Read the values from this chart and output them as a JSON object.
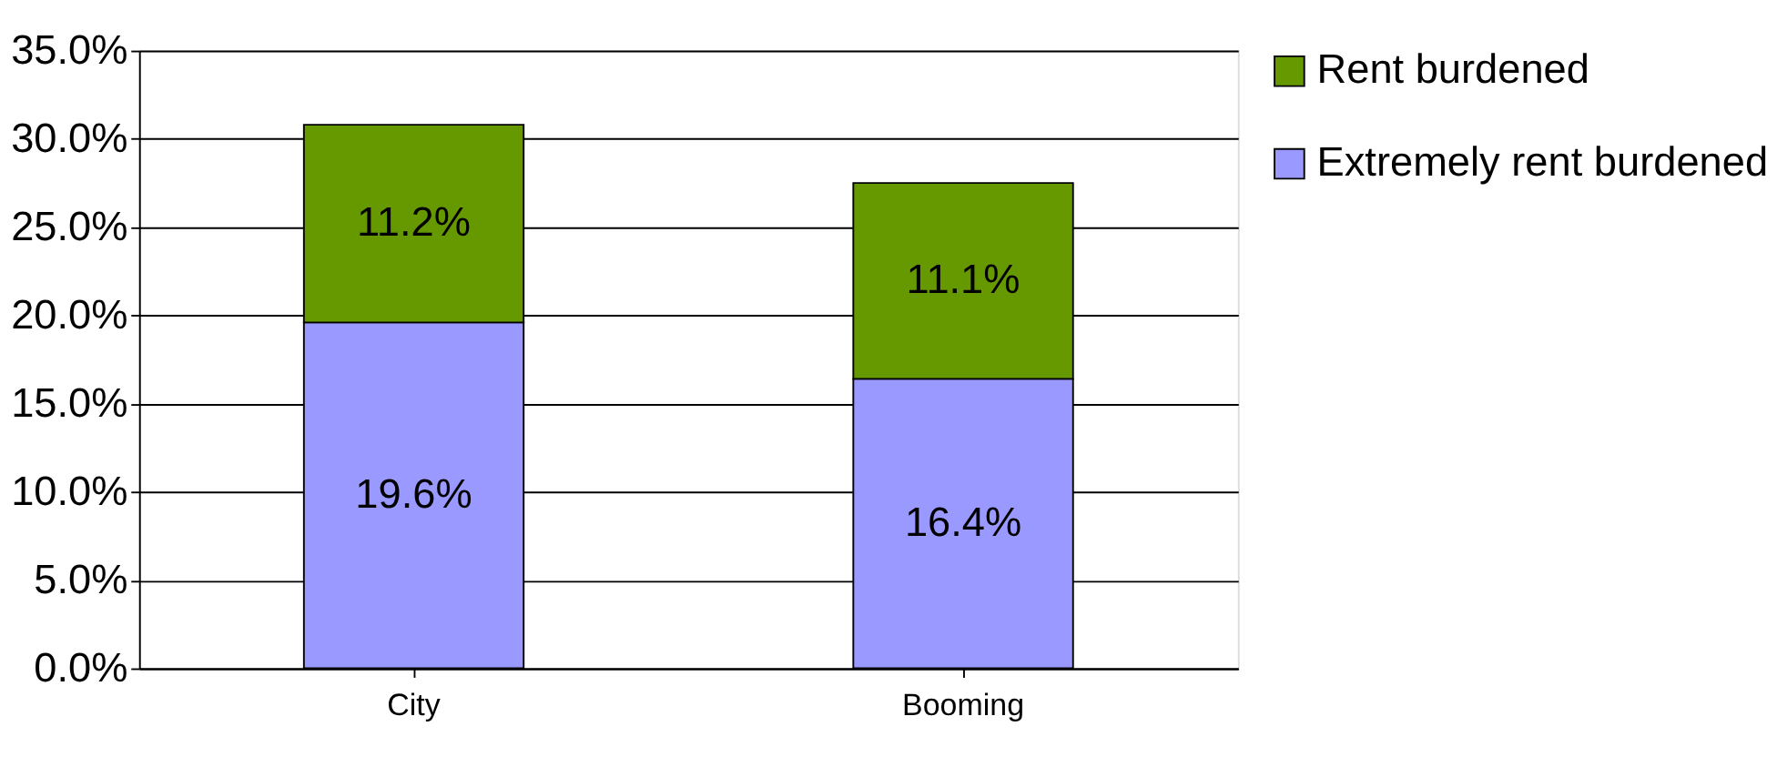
{
  "chart_data": {
    "type": "bar",
    "stacked": true,
    "categories": [
      "City",
      "Booming"
    ],
    "series": [
      {
        "name": "Extremely rent burdened",
        "color": "#9999ff",
        "values": [
          19.6,
          16.4
        ],
        "value_labels": [
          "19.6%",
          "16.4%"
        ]
      },
      {
        "name": "Rent burdened",
        "color": "#669900",
        "values": [
          11.2,
          11.1
        ],
        "value_labels": [
          "11.2%",
          "11.1%"
        ]
      }
    ],
    "ylim": [
      0,
      35
    ],
    "yticks": [
      {
        "value": 0,
        "label": "0.0%"
      },
      {
        "value": 5,
        "label": "5.0%"
      },
      {
        "value": 10,
        "label": "10.0%"
      },
      {
        "value": 15,
        "label": "15.0%"
      },
      {
        "value": 20,
        "label": "20.0%"
      },
      {
        "value": 25,
        "label": "25.0%"
      },
      {
        "value": 30,
        "label": "30.0%"
      },
      {
        "value": 35,
        "label": "35.0%"
      }
    ],
    "grid": "y",
    "legend": "right"
  }
}
